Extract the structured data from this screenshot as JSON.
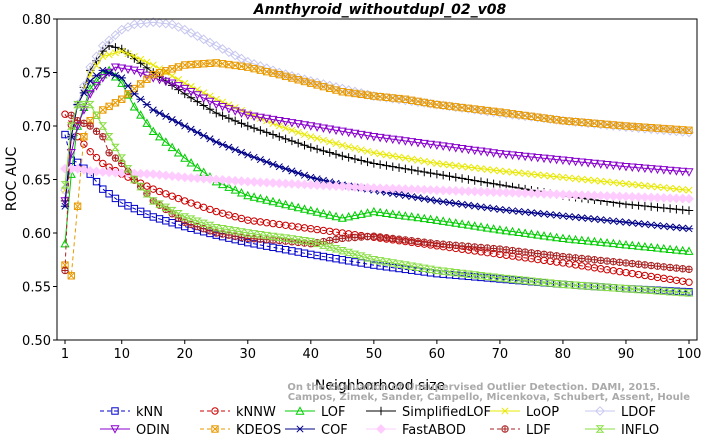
{
  "chart_data": {
    "type": "line",
    "title": "Annthyroid_withoutdupl_02_v08",
    "xlabel": "Neighborhood size",
    "ylabel": "ROC AUC",
    "xlim": [
      1,
      100
    ],
    "ylim": [
      0.5,
      0.8
    ],
    "xticks": [
      "1",
      "10",
      "20",
      "30",
      "40",
      "50",
      "60",
      "70",
      "80",
      "90",
      "100"
    ],
    "yticks": [
      "0.50",
      "0.55",
      "0.60",
      "0.65",
      "0.70",
      "0.75",
      "0.80"
    ],
    "grid": false,
    "legend_position": "bottom",
    "watermark": "Campos, Zimek, Sander, Campello, Micenkova, Schubert, Assent, Houle\nOn the Evaluation of Unsupervised Outlier Detection. DAMI, 2015.",
    "series": [
      {
        "name": "kNN",
        "color": "#0000cc",
        "marker": "square",
        "dash": "4,3",
        "points": [
          [
            1,
            0.692
          ],
          [
            2,
            0.668
          ],
          [
            3,
            0.666
          ],
          [
            5,
            0.655
          ],
          [
            7,
            0.641
          ],
          [
            10,
            0.628
          ],
          [
            15,
            0.615
          ],
          [
            20,
            0.606
          ],
          [
            25,
            0.598
          ],
          [
            30,
            0.591
          ],
          [
            40,
            0.58
          ],
          [
            50,
            0.57
          ],
          [
            60,
            0.562
          ],
          [
            70,
            0.557
          ],
          [
            80,
            0.552
          ],
          [
            90,
            0.548
          ],
          [
            100,
            0.545
          ]
        ]
      },
      {
        "name": "kNNW",
        "color": "#cc0000",
        "marker": "circle",
        "dash": "4,3",
        "points": [
          [
            1,
            0.711
          ],
          [
            2,
            0.701
          ],
          [
            3,
            0.69
          ],
          [
            5,
            0.676
          ],
          [
            7,
            0.665
          ],
          [
            10,
            0.655
          ],
          [
            15,
            0.641
          ],
          [
            20,
            0.63
          ],
          [
            25,
            0.62
          ],
          [
            30,
            0.612
          ],
          [
            40,
            0.604
          ],
          [
            50,
            0.596
          ],
          [
            60,
            0.588
          ],
          [
            70,
            0.58
          ],
          [
            80,
            0.572
          ],
          [
            90,
            0.563
          ],
          [
            100,
            0.554
          ]
        ]
      },
      {
        "name": "LOF",
        "color": "#00cc00",
        "marker": "triangle-up",
        "dash": "",
        "points": [
          [
            1,
            0.59
          ],
          [
            2,
            0.655
          ],
          [
            3,
            0.7
          ],
          [
            5,
            0.735
          ],
          [
            7,
            0.748
          ],
          [
            8,
            0.752
          ],
          [
            10,
            0.74
          ],
          [
            12,
            0.718
          ],
          [
            15,
            0.695
          ],
          [
            20,
            0.67
          ],
          [
            25,
            0.648
          ],
          [
            30,
            0.635
          ],
          [
            35,
            0.628
          ],
          [
            40,
            0.621
          ],
          [
            45,
            0.614
          ],
          [
            50,
            0.62
          ],
          [
            55,
            0.616
          ],
          [
            60,
            0.612
          ],
          [
            70,
            0.603
          ],
          [
            80,
            0.595
          ],
          [
            90,
            0.589
          ],
          [
            100,
            0.583
          ]
        ]
      },
      {
        "name": "SimplifiedLOF",
        "color": "#000000",
        "marker": "plus",
        "dash": "",
        "points": [
          [
            1,
            0.63
          ],
          [
            2,
            0.69
          ],
          [
            3,
            0.72
          ],
          [
            5,
            0.752
          ],
          [
            7,
            0.77
          ],
          [
            8,
            0.775
          ],
          [
            10,
            0.772
          ],
          [
            12,
            0.763
          ],
          [
            15,
            0.75
          ],
          [
            20,
            0.73
          ],
          [
            25,
            0.712
          ],
          [
            30,
            0.7
          ],
          [
            35,
            0.69
          ],
          [
            40,
            0.68
          ],
          [
            45,
            0.672
          ],
          [
            50,
            0.665
          ],
          [
            60,
            0.655
          ],
          [
            70,
            0.645
          ],
          [
            80,
            0.635
          ],
          [
            90,
            0.627
          ],
          [
            100,
            0.621
          ]
        ]
      },
      {
        "name": "LoOP",
        "color": "#e8e800",
        "marker": "cross",
        "dash": "",
        "points": [
          [
            1,
            0.64
          ],
          [
            2,
            0.69
          ],
          [
            3,
            0.72
          ],
          [
            5,
            0.748
          ],
          [
            7,
            0.765
          ],
          [
            10,
            0.77
          ],
          [
            12,
            0.765
          ],
          [
            15,
            0.757
          ],
          [
            20,
            0.74
          ],
          [
            25,
            0.725
          ],
          [
            30,
            0.712
          ],
          [
            35,
            0.7
          ],
          [
            40,
            0.69
          ],
          [
            45,
            0.682
          ],
          [
            50,
            0.675
          ],
          [
            60,
            0.665
          ],
          [
            70,
            0.658
          ],
          [
            80,
            0.652
          ],
          [
            90,
            0.646
          ],
          [
            100,
            0.64
          ]
        ]
      },
      {
        "name": "LDOF",
        "color": "#c8c8f0",
        "marker": "diamond",
        "dash": "",
        "points": [
          [
            1,
            0.64
          ],
          [
            2,
            0.69
          ],
          [
            3,
            0.72
          ],
          [
            5,
            0.755
          ],
          [
            7,
            0.775
          ],
          [
            10,
            0.79
          ],
          [
            12,
            0.795
          ],
          [
            15,
            0.797
          ],
          [
            18,
            0.795
          ],
          [
            20,
            0.79
          ],
          [
            25,
            0.775
          ],
          [
            30,
            0.76
          ],
          [
            35,
            0.75
          ],
          [
            40,
            0.742
          ],
          [
            45,
            0.735
          ],
          [
            50,
            0.728
          ],
          [
            60,
            0.72
          ],
          [
            70,
            0.712
          ],
          [
            80,
            0.705
          ],
          [
            90,
            0.699
          ],
          [
            100,
            0.694
          ]
        ]
      },
      {
        "name": "ODIN",
        "color": "#8800cc",
        "marker": "triangle-down",
        "dash": "",
        "points": [
          [
            1,
            0.63
          ],
          [
            2,
            0.675
          ],
          [
            3,
            0.7
          ],
          [
            5,
            0.73
          ],
          [
            7,
            0.745
          ],
          [
            9,
            0.755
          ],
          [
            12,
            0.752
          ],
          [
            15,
            0.745
          ],
          [
            18,
            0.74
          ],
          [
            20,
            0.735
          ],
          [
            25,
            0.72
          ],
          [
            30,
            0.71
          ],
          [
            40,
            0.7
          ],
          [
            50,
            0.69
          ],
          [
            60,
            0.682
          ],
          [
            70,
            0.674
          ],
          [
            80,
            0.668
          ],
          [
            90,
            0.662
          ],
          [
            100,
            0.657
          ]
        ]
      },
      {
        "name": "KDEOS",
        "color": "#e89a00",
        "marker": "square-x",
        "dash": "4,3",
        "points": [
          [
            1,
            0.57
          ],
          [
            2,
            0.56
          ],
          [
            3,
            0.625
          ],
          [
            4,
            0.69
          ],
          [
            5,
            0.705
          ],
          [
            7,
            0.715
          ],
          [
            10,
            0.725
          ],
          [
            12,
            0.735
          ],
          [
            15,
            0.748
          ],
          [
            20,
            0.757
          ],
          [
            25,
            0.759
          ],
          [
            30,
            0.755
          ],
          [
            35,
            0.748
          ],
          [
            40,
            0.74
          ],
          [
            45,
            0.732
          ],
          [
            50,
            0.728
          ],
          [
            55,
            0.725
          ],
          [
            60,
            0.72
          ],
          [
            70,
            0.713
          ],
          [
            80,
            0.705
          ],
          [
            90,
            0.7
          ],
          [
            100,
            0.696
          ]
        ]
      },
      {
        "name": "COF",
        "color": "#000088",
        "marker": "star",
        "dash": "",
        "points": [
          [
            1,
            0.625
          ],
          [
            2,
            0.69
          ],
          [
            3,
            0.72
          ],
          [
            5,
            0.742
          ],
          [
            7,
            0.752
          ],
          [
            10,
            0.745
          ],
          [
            12,
            0.73
          ],
          [
            15,
            0.715
          ],
          [
            20,
            0.7
          ],
          [
            25,
            0.685
          ],
          [
            30,
            0.673
          ],
          [
            35,
            0.662
          ],
          [
            40,
            0.652
          ],
          [
            45,
            0.645
          ],
          [
            50,
            0.64
          ],
          [
            60,
            0.63
          ],
          [
            70,
            0.622
          ],
          [
            80,
            0.616
          ],
          [
            90,
            0.61
          ],
          [
            100,
            0.604
          ]
        ]
      },
      {
        "name": "FastABOD",
        "color": "#ffccff",
        "marker": "diamond-filled",
        "dash": "",
        "points": [
          [
            1,
            0.66
          ],
          [
            2,
            0.66
          ],
          [
            3,
            0.66
          ],
          [
            5,
            0.658
          ],
          [
            7,
            0.657
          ],
          [
            10,
            0.656
          ],
          [
            15,
            0.655
          ],
          [
            20,
            0.652
          ],
          [
            30,
            0.648
          ],
          [
            40,
            0.645
          ],
          [
            50,
            0.642
          ],
          [
            60,
            0.64
          ],
          [
            70,
            0.638
          ],
          [
            80,
            0.636
          ],
          [
            90,
            0.634
          ],
          [
            100,
            0.632
          ]
        ]
      },
      {
        "name": "LDF",
        "color": "#aa2222",
        "marker": "circle-plus",
        "dash": "4,3",
        "points": [
          [
            1,
            0.565
          ],
          [
            2,
            0.71
          ],
          [
            3,
            0.705
          ],
          [
            5,
            0.7
          ],
          [
            7,
            0.69
          ],
          [
            8,
            0.675
          ],
          [
            10,
            0.665
          ],
          [
            12,
            0.65
          ],
          [
            15,
            0.63
          ],
          [
            20,
            0.61
          ],
          [
            25,
            0.6
          ],
          [
            30,
            0.595
          ],
          [
            35,
            0.593
          ],
          [
            40,
            0.59
          ],
          [
            45,
            0.595
          ],
          [
            50,
            0.597
          ],
          [
            60,
            0.59
          ],
          [
            70,
            0.585
          ],
          [
            80,
            0.578
          ],
          [
            90,
            0.572
          ],
          [
            100,
            0.566
          ]
        ]
      },
      {
        "name": "INFLO",
        "color": "#88dd44",
        "marker": "hourglass",
        "dash": "",
        "points": [
          [
            1,
            0.645
          ],
          [
            2,
            0.7
          ],
          [
            3,
            0.72
          ],
          [
            5,
            0.72
          ],
          [
            7,
            0.7
          ],
          [
            10,
            0.67
          ],
          [
            12,
            0.65
          ],
          [
            15,
            0.63
          ],
          [
            20,
            0.615
          ],
          [
            25,
            0.605
          ],
          [
            30,
            0.6
          ],
          [
            40,
            0.592
          ],
          [
            50,
            0.575
          ],
          [
            60,
            0.565
          ],
          [
            70,
            0.558
          ],
          [
            80,
            0.552
          ],
          [
            90,
            0.548
          ],
          [
            100,
            0.544
          ]
        ]
      }
    ]
  }
}
